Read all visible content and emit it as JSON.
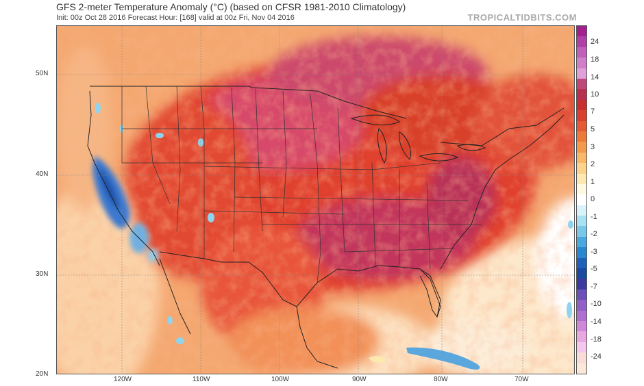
{
  "header": {
    "title": "GFS 2-meter Temperature Anomaly (°C) (based on CFSR 1981-2010 Climatology)",
    "subtitle": "Init: 00z Oct 28 2016   Forecast Hour: [168]   valid at 00z Fri, Nov 04 2016",
    "brand": "TROPICALTIDBITS.COM"
  },
  "map": {
    "latitude_labels": [
      "50N",
      "40N",
      "30N",
      "20N"
    ],
    "longitude_labels": [
      "120W",
      "110W",
      "100W",
      "90W",
      "80W",
      "70W"
    ]
  },
  "legend": {
    "labels": [
      "24",
      "18",
      "14",
      "10",
      "7",
      "5",
      "3",
      "2",
      "1",
      "0",
      "-1",
      "-2",
      "-3",
      "-5",
      "-7",
      "-10",
      "-14",
      "-18",
      "-24"
    ],
    "colors": {
      "warm_extreme": "#b030a0",
      "warm_high": "#c03070",
      "warm": "#e04030",
      "warm_mid": "#f08040",
      "warm_low": "#f8c080",
      "neutral": "#ffffff",
      "cool_low": "#b0e8f0",
      "cool": "#4080d0",
      "cool_extreme": "#d070c0"
    }
  }
}
